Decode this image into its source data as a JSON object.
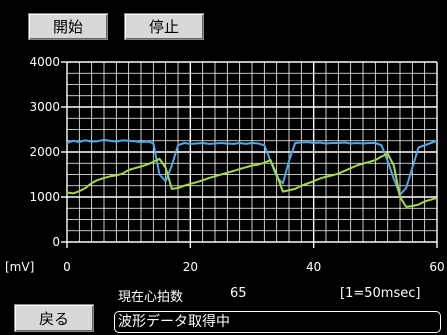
{
  "buttons": {
    "start": "開始",
    "stop": "停止",
    "back": "戻る"
  },
  "heart_rate": {
    "label": "現在心拍数",
    "value": "65"
  },
  "scale_note": "[1=50msec]",
  "status": "波形データ取得中",
  "chart_data": {
    "type": "line",
    "ylabel": "[mV]",
    "xlim": [
      0,
      60
    ],
    "ylim": [
      0,
      4000
    ],
    "x_ticks": [
      "0",
      "20",
      "40",
      "60"
    ],
    "y_ticks": [
      "0",
      "1000",
      "2000",
      "3000",
      "4000"
    ],
    "grid": true,
    "colors": {
      "series1": "#4fa8e8",
      "series2": "#a8d848",
      "grid": "#ffffff"
    },
    "x": [
      0,
      1,
      2,
      3,
      4,
      5,
      6,
      7,
      8,
      9,
      10,
      11,
      12,
      13,
      14,
      15,
      16,
      17,
      18,
      19,
      20,
      21,
      22,
      23,
      24,
      25,
      26,
      27,
      28,
      29,
      30,
      31,
      32,
      33,
      34,
      35,
      36,
      37,
      38,
      39,
      40,
      41,
      42,
      43,
      44,
      45,
      46,
      47,
      48,
      49,
      50,
      51,
      52,
      53,
      54,
      55,
      56,
      57,
      58,
      59,
      60
    ],
    "series": [
      {
        "values": [
          2200,
          2250,
          2220,
          2260,
          2230,
          2240,
          2270,
          2250,
          2230,
          2260,
          2250,
          2240,
          2220,
          2230,
          2200,
          1500,
          1350,
          1700,
          2150,
          2200,
          2180,
          2190,
          2200,
          2180,
          2190,
          2200,
          2190,
          2180,
          2200,
          2180,
          2200,
          2190,
          2150,
          1800,
          1450,
          1300,
          1800,
          2200,
          2210,
          2220,
          2200,
          2210,
          2190,
          2200,
          2200,
          2210,
          2190,
          2200,
          2190,
          2200,
          2200,
          2150,
          1800,
          1400,
          1050,
          1200,
          1650,
          2100,
          2150,
          2200,
          2250
        ]
      },
      {
        "values": [
          1100,
          1080,
          1130,
          1200,
          1310,
          1380,
          1420,
          1460,
          1480,
          1520,
          1600,
          1640,
          1680,
          1720,
          1780,
          1850,
          1650,
          1180,
          1200,
          1250,
          1290,
          1330,
          1370,
          1420,
          1460,
          1500,
          1540,
          1580,
          1620,
          1660,
          1700,
          1720,
          1760,
          1820,
          1500,
          1120,
          1150,
          1180,
          1250,
          1300,
          1350,
          1410,
          1450,
          1480,
          1520,
          1580,
          1640,
          1700,
          1740,
          1780,
          1820,
          1900,
          1960,
          1700,
          1000,
          780,
          800,
          830,
          900,
          940,
          980
        ]
      }
    ]
  }
}
